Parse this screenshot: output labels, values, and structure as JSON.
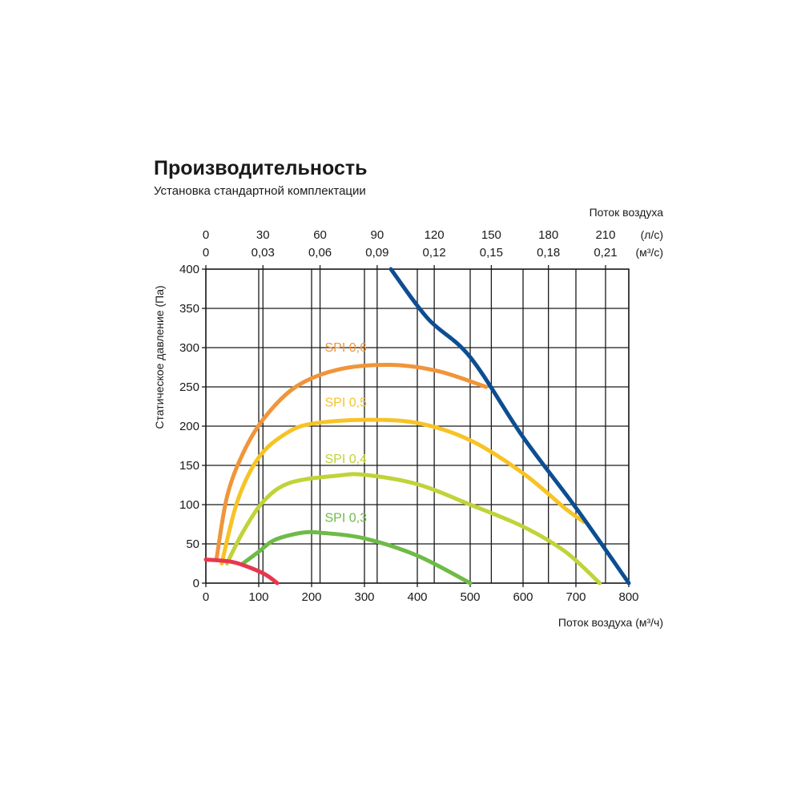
{
  "chart_data": {
    "type": "line",
    "title": "Производительность",
    "subtitle": "Установка стандартной комплектации",
    "xlabel": "Поток воздуха (м³/ч)",
    "ylabel": "Статическое давление (Па)",
    "top_axis_label": "Поток воздуха",
    "xlim": [
      0,
      800
    ],
    "ylim": [
      0,
      400
    ],
    "x_ticks": [
      "0",
      "100",
      "200",
      "300",
      "400",
      "500",
      "600",
      "700",
      "800"
    ],
    "y_ticks": [
      "0",
      "50",
      "100",
      "150",
      "200",
      "250",
      "300",
      "350",
      "400"
    ],
    "top_ticks_ls": {
      "unit": "(л/с)",
      "labels": [
        "0",
        "30",
        "60",
        "90",
        "120",
        "150",
        "180",
        "210"
      ],
      "values": [
        0,
        30,
        60,
        90,
        120,
        150,
        180,
        210
      ]
    },
    "top_ticks_m3s": {
      "unit": "(м³/с)",
      "labels": [
        "0",
        "0,03",
        "0,06",
        "0,09",
        "0,12",
        "0,15",
        "0,18",
        "0,21"
      ],
      "values": [
        0,
        0.03,
        0.06,
        0.09,
        0.12,
        0.15,
        0.18,
        0.21
      ]
    },
    "grid": true,
    "series": [
      {
        "name": "SPI 0,6",
        "color": "#f0953a",
        "label_at": [
          225,
          295
        ],
        "points": [
          [
            20,
            30
          ],
          [
            40,
            110
          ],
          [
            70,
            165
          ],
          [
            110,
            210
          ],
          [
            170,
            250
          ],
          [
            250,
            272
          ],
          [
            350,
            278
          ],
          [
            440,
            270
          ],
          [
            530,
            250
          ]
        ]
      },
      {
        "name": "SPI 0,5",
        "color": "#f7c325",
        "label_at": [
          225,
          225
        ],
        "points": [
          [
            30,
            25
          ],
          [
            60,
            105
          ],
          [
            100,
            160
          ],
          [
            150,
            190
          ],
          [
            200,
            203
          ],
          [
            300,
            208
          ],
          [
            400,
            204
          ],
          [
            500,
            182
          ],
          [
            600,
            140
          ],
          [
            680,
            95
          ],
          [
            715,
            78
          ]
        ]
      },
      {
        "name": "SPI 0,4",
        "color": "#c0d339",
        "label_at": [
          225,
          153
        ],
        "points": [
          [
            40,
            25
          ],
          [
            70,
            65
          ],
          [
            110,
            105
          ],
          [
            160,
            128
          ],
          [
            250,
            137
          ],
          [
            300,
            138
          ],
          [
            400,
            126
          ],
          [
            500,
            100
          ],
          [
            600,
            72
          ],
          [
            680,
            40
          ],
          [
            745,
            0
          ]
        ]
      },
      {
        "name": "SPI 0,3",
        "color": "#6ebb47",
        "label_at": [
          225,
          78
        ],
        "points": [
          [
            70,
            25
          ],
          [
            100,
            40
          ],
          [
            130,
            55
          ],
          [
            180,
            64
          ],
          [
            220,
            64
          ],
          [
            300,
            57
          ],
          [
            400,
            35
          ],
          [
            500,
            0
          ]
        ]
      },
      {
        "name": "",
        "color": "#e8374f",
        "points": [
          [
            0,
            30
          ],
          [
            50,
            27
          ],
          [
            90,
            18
          ],
          [
            115,
            10
          ],
          [
            135,
            0
          ]
        ]
      },
      {
        "name": "",
        "color": "#0d4e92",
        "points": [
          [
            350,
            400
          ],
          [
            420,
            337
          ],
          [
            500,
            288
          ],
          [
            600,
            186
          ],
          [
            700,
            96
          ],
          [
            800,
            0
          ]
        ]
      }
    ]
  }
}
